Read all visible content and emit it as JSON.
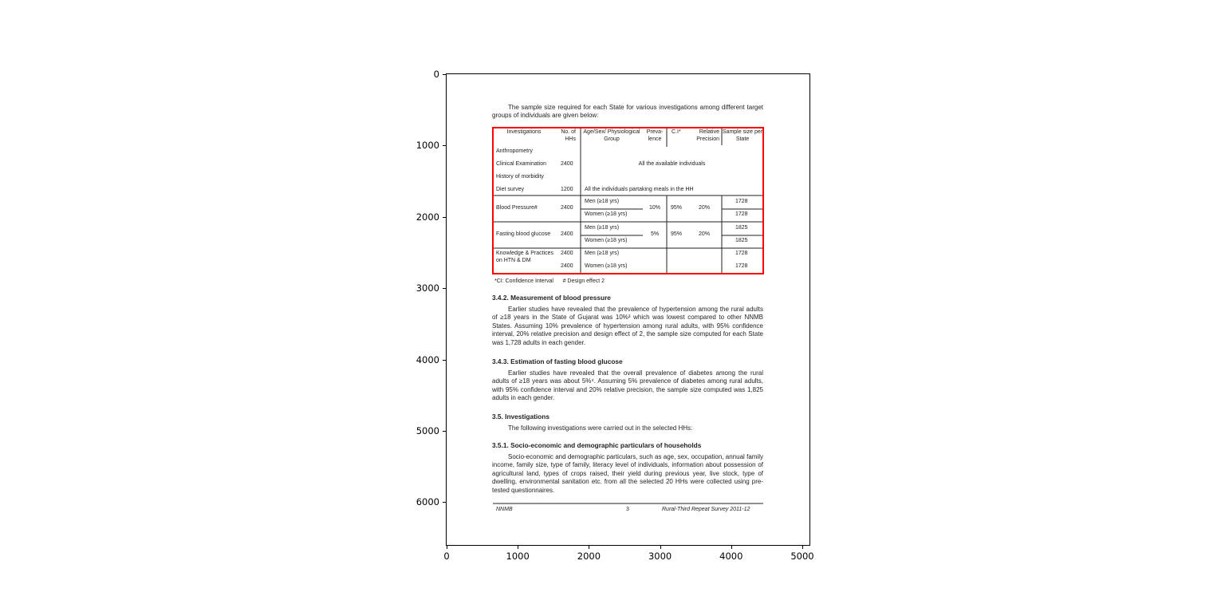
{
  "axes": {
    "x_ticks": [
      "0",
      "1000",
      "2000",
      "3000",
      "4000",
      "5000"
    ],
    "y_ticks": [
      "0",
      "1000",
      "2000",
      "3000",
      "4000",
      "5000",
      "6000"
    ],
    "highlight_color": "#ff0000"
  },
  "doc": {
    "intro": "The sample size required for each State for various investigations among different target groups of individuals are given below:",
    "table": {
      "headers": [
        "Investigations",
        "No. of HHs",
        "Age/Sex/ Physiological Group",
        "Preva-lence",
        "C.I*",
        "Relative Precision",
        "Sample size per State"
      ],
      "rows": [
        {
          "inv": "Anthropometry"
        },
        {
          "inv": "Clinical Examination",
          "hh": "2400",
          "group": "All the available individuals"
        },
        {
          "inv": "History of morbidity"
        },
        {
          "inv": "Diet survey",
          "hh": "1200",
          "group": "All the individuals partaking meals in the HH"
        }
      ],
      "bp": {
        "inv": "Blood Pressure#",
        "hh": "2400",
        "men": "Men (≥18 yrs)",
        "women": "Women (≥18 yrs)",
        "prev": "10%",
        "ci": "95%",
        "prec": "20%",
        "s1": "1728",
        "s2": "1728"
      },
      "fbg": {
        "inv": "Fasting blood glucose",
        "hh": "2400",
        "men": "Men (≥18 yrs)",
        "women": "Women (≥18 yrs)",
        "prev": "5%",
        "ci": "95%",
        "prec": "20%",
        "s1": "1825",
        "s2": "1825"
      },
      "kp": {
        "inv": "Knowledge & Practices on HTN & DM",
        "hh1": "2400",
        "hh2": "2400",
        "men": "Men (≥18 yrs)",
        "women": "Women (≥18 yrs)",
        "s1": "1728",
        "s2": "1728"
      },
      "footnote": "*CI: Confidence Interval      # Design effect 2"
    },
    "s342_title": "3.4.2. Measurement of blood pressure",
    "s342_text": "Earlier studies have revealed that the prevalence of hypertension among the rural adults of ≥18 years in the State of Gujarat was 10%³ which was lowest compared to other NNMB States. Assuming 10% prevalence of hypertension among rural adults, with 95% confidence interval, 20% relative precision and design effect of 2, the sample size computed for each State was 1,728 adults in each gender.",
    "s343_title": "3.4.3. Estimation of fasting blood glucose",
    "s343_text": "Earlier studies have revealed that the overall prevalence of diabetes among the rural adults of ≥18 years was about 5%⁴. Assuming 5% prevalence of diabetes among rural adults, with 95% confidence interval and 20% relative precision, the sample size computed was 1,825 adults in each gender.",
    "s35_title": "3.5. Investigations",
    "s35_text": "The following investigations were carried out in the selected HHs:",
    "s351_title": "3.5.1. Socio-economic and demographic particulars of households",
    "s351_text": "Socio-economic and demographic particulars, such as age, sex, occupation, annual family income, family size, type of family, literacy level of individuals, information about possession of agricultural land, types of crops raised, their yield during previous year, live stock, type of dwelling, environmental sanitation etc. from all the selected 20 HHs were collected using pre-tested questionnaires.",
    "footer": {
      "left": "NNMB",
      "center": "3",
      "right": "Rural-Third Repeat Survey 2011-12"
    }
  }
}
